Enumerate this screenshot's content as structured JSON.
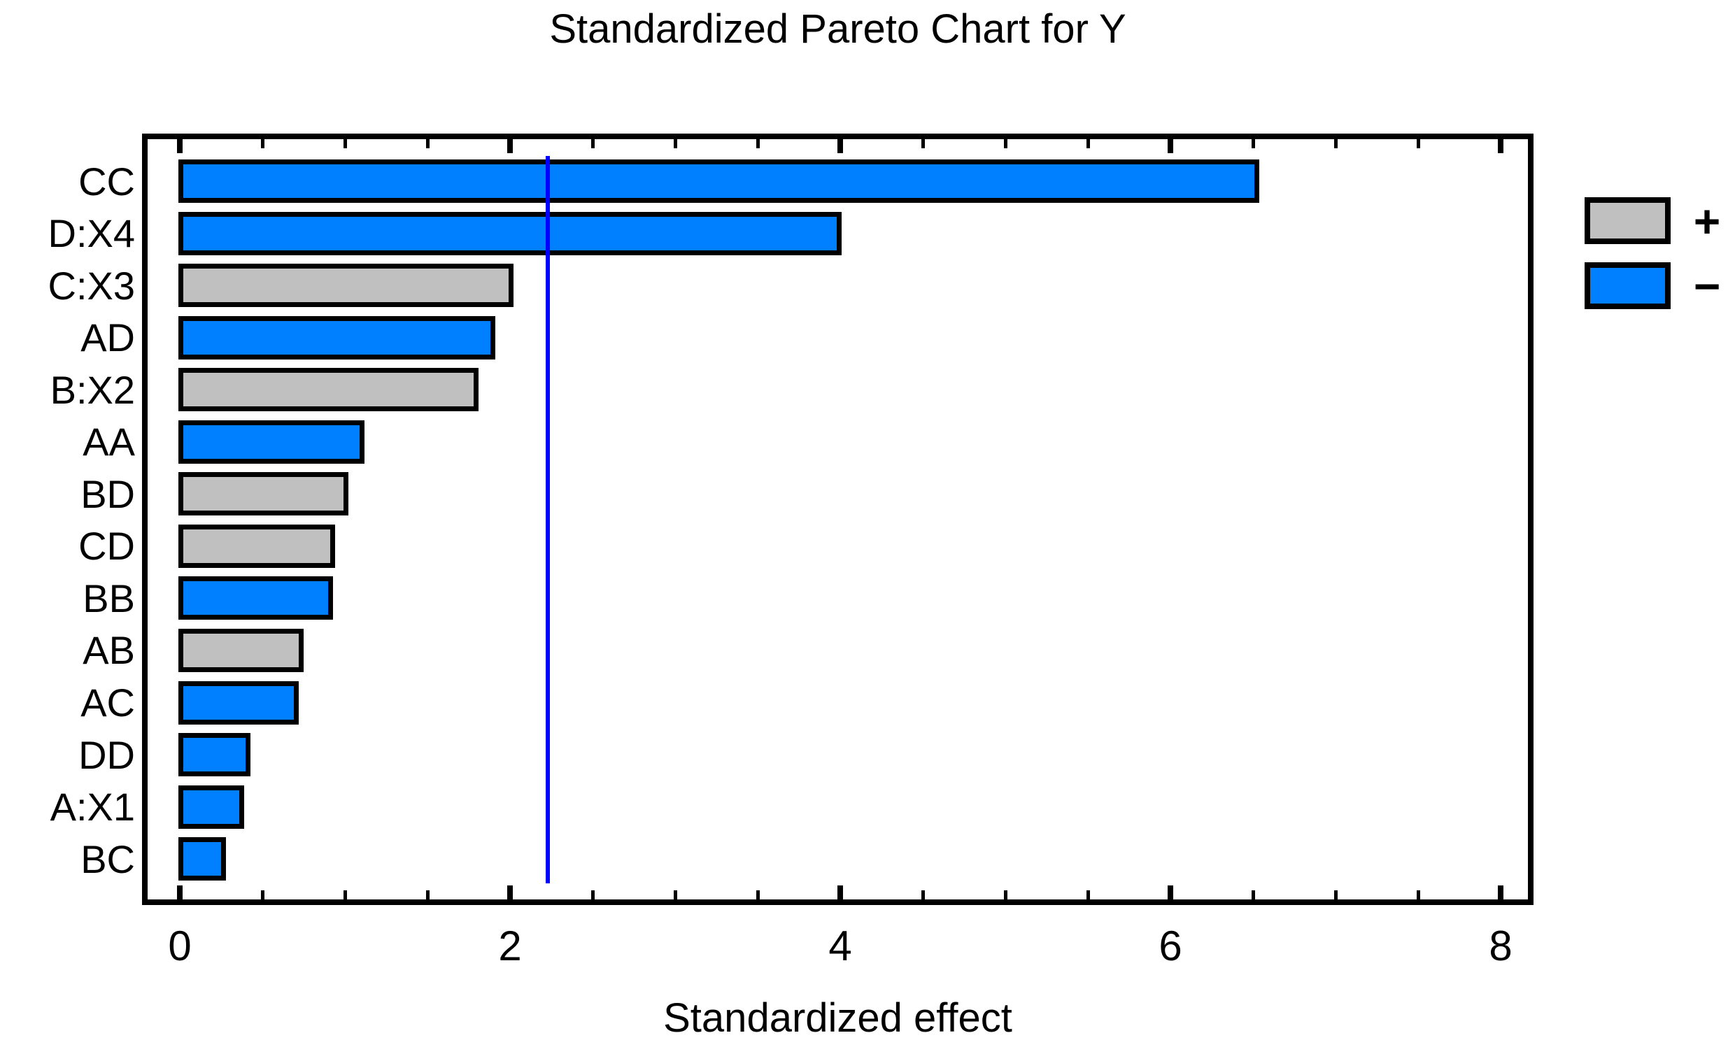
{
  "chart_data": {
    "type": "bar",
    "orientation": "horizontal",
    "title": "Standardized Pareto Chart for Y",
    "xlabel": "Standardized effect",
    "categories": [
      "CC",
      "D:X4",
      "C:X3",
      "AD",
      "B:X2",
      "AA",
      "BD",
      "CD",
      "BB",
      "AB",
      "AC",
      "DD",
      "A:X1",
      "BC"
    ],
    "values": [
      6.54,
      4.01,
      2.02,
      1.91,
      1.81,
      1.12,
      1.02,
      0.94,
      0.93,
      0.75,
      0.72,
      0.43,
      0.39,
      0.28
    ],
    "signs": [
      "-",
      "-",
      "+",
      "-",
      "+",
      "-",
      "+",
      "+",
      "-",
      "+",
      "-",
      "-",
      "-",
      "-"
    ],
    "bar_colors": {
      "plus": "#C0C0C0",
      "minus": "#0080FF"
    },
    "bar_border_color": "#000000",
    "reference_line": 2.23,
    "reference_line_color": "#0000FF",
    "xlim": [
      0,
      8.2
    ],
    "x_major_ticks": [
      0,
      2,
      4,
      6,
      8
    ],
    "x_major_tick_labels": [
      "0",
      "2",
      "4",
      "6",
      "8"
    ],
    "x_minor_tick_step": 0.5,
    "grid": "off",
    "legend_position": "right",
    "legend": [
      {
        "key": "plus",
        "label": "+",
        "color": "#C0C0C0"
      },
      {
        "key": "minus",
        "label": "−",
        "color": "#0080FF"
      }
    ]
  }
}
